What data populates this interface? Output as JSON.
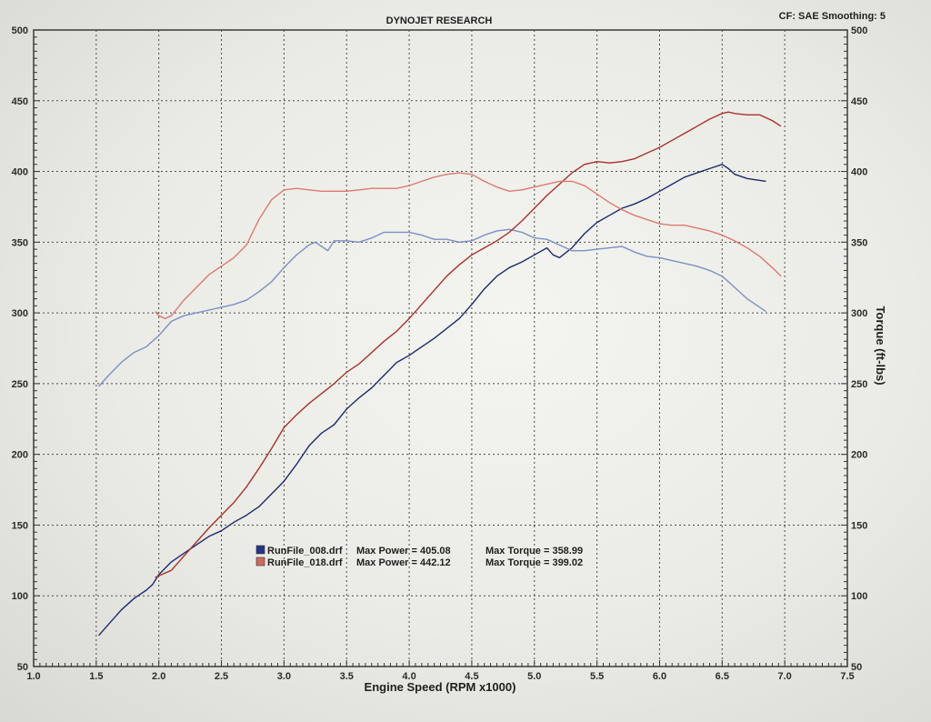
{
  "chart_data": {
    "type": "line",
    "title": "DYNOJET RESEARCH",
    "corner_note": "CF: SAE  Smoothing: 5",
    "xlabel": "Engine Speed (RPM x1000)",
    "ylabel_left": "",
    "ylabel_right": "Torque (ft-lbs)",
    "xlim": [
      1.0,
      7.5
    ],
    "ylim": [
      50,
      500
    ],
    "x_ticks": [
      "1.0",
      "1.5",
      "2.0",
      "2.5",
      "3.0",
      "3.5",
      "4.0",
      "4.5",
      "5.0",
      "5.5",
      "6.0",
      "6.5",
      "7.0",
      "7.5"
    ],
    "y_ticks": [
      "50",
      "100",
      "150",
      "200",
      "250",
      "300",
      "350",
      "400",
      "450",
      "500"
    ],
    "grid": true,
    "colors": {
      "dark_blue": "#1c2a6e",
      "light_blue": "#7d8fc4",
      "dark_red": "#a8322a",
      "light_red": "#dc7a6f"
    },
    "legend": [
      {
        "file": "RunFile_008.drf",
        "power_label": "Max Power = 405.08",
        "torque_label": "Max Torque = 358.99",
        "color": "#26348a"
      },
      {
        "file": "RunFile_018.drf",
        "power_label": "Max Power = 442.12",
        "torque_label": "Max Torque = 399.02",
        "color": "#d06a60"
      }
    ],
    "series": [
      {
        "name": "RunFile_008.drf",
        "measure": "power",
        "color": "#1c2a6e",
        "points": [
          [
            1.52,
            72
          ],
          [
            1.6,
            80
          ],
          [
            1.7,
            90
          ],
          [
            1.8,
            98
          ],
          [
            1.9,
            104
          ],
          [
            1.95,
            108
          ],
          [
            2.0,
            115
          ],
          [
            2.1,
            124
          ],
          [
            2.2,
            130
          ],
          [
            2.3,
            136
          ],
          [
            2.4,
            142
          ],
          [
            2.5,
            146
          ],
          [
            2.6,
            152
          ],
          [
            2.7,
            157
          ],
          [
            2.8,
            163
          ],
          [
            2.9,
            172
          ],
          [
            3.0,
            181
          ],
          [
            3.1,
            193
          ],
          [
            3.2,
            206
          ],
          [
            3.3,
            215
          ],
          [
            3.35,
            218
          ],
          [
            3.4,
            221
          ],
          [
            3.5,
            232
          ],
          [
            3.6,
            240
          ],
          [
            3.7,
            247
          ],
          [
            3.8,
            256
          ],
          [
            3.9,
            265
          ],
          [
            4.0,
            270
          ],
          [
            4.1,
            276
          ],
          [
            4.2,
            282
          ],
          [
            4.3,
            289
          ],
          [
            4.4,
            296
          ],
          [
            4.5,
            306
          ],
          [
            4.6,
            317
          ],
          [
            4.7,
            326
          ],
          [
            4.8,
            332
          ],
          [
            4.9,
            336
          ],
          [
            5.0,
            341
          ],
          [
            5.1,
            346
          ],
          [
            5.15,
            341
          ],
          [
            5.2,
            339
          ],
          [
            5.3,
            346
          ],
          [
            5.4,
            356
          ],
          [
            5.5,
            364
          ],
          [
            5.6,
            369
          ],
          [
            5.7,
            374
          ],
          [
            5.8,
            377
          ],
          [
            5.9,
            381
          ],
          [
            6.0,
            386
          ],
          [
            6.1,
            391
          ],
          [
            6.2,
            396
          ],
          [
            6.3,
            399
          ],
          [
            6.4,
            402
          ],
          [
            6.5,
            405
          ],
          [
            6.55,
            402
          ],
          [
            6.6,
            398
          ],
          [
            6.7,
            395
          ],
          [
            6.85,
            393
          ]
        ]
      },
      {
        "name": "RunFile_008.drf",
        "measure": "torque",
        "color": "#7d8fc4",
        "points": [
          [
            1.52,
            248
          ],
          [
            1.6,
            256
          ],
          [
            1.7,
            265
          ],
          [
            1.8,
            272
          ],
          [
            1.9,
            276
          ],
          [
            2.0,
            284
          ],
          [
            2.1,
            294
          ],
          [
            2.2,
            298
          ],
          [
            2.3,
            300
          ],
          [
            2.4,
            302
          ],
          [
            2.5,
            304
          ],
          [
            2.6,
            306
          ],
          [
            2.7,
            309
          ],
          [
            2.8,
            315
          ],
          [
            2.9,
            322
          ],
          [
            3.0,
            332
          ],
          [
            3.1,
            341
          ],
          [
            3.2,
            348
          ],
          [
            3.25,
            350
          ],
          [
            3.3,
            347
          ],
          [
            3.35,
            344
          ],
          [
            3.4,
            351
          ],
          [
            3.5,
            351
          ],
          [
            3.6,
            350
          ],
          [
            3.7,
            353
          ],
          [
            3.8,
            357
          ],
          [
            3.9,
            357
          ],
          [
            4.0,
            357
          ],
          [
            4.1,
            355
          ],
          [
            4.2,
            352
          ],
          [
            4.3,
            352
          ],
          [
            4.4,
            350
          ],
          [
            4.5,
            351
          ],
          [
            4.6,
            355
          ],
          [
            4.7,
            358
          ],
          [
            4.8,
            359
          ],
          [
            4.9,
            357
          ],
          [
            5.0,
            353
          ],
          [
            5.1,
            352
          ],
          [
            5.2,
            348
          ],
          [
            5.3,
            344
          ],
          [
            5.4,
            344
          ],
          [
            5.5,
            345
          ],
          [
            5.6,
            346
          ],
          [
            5.7,
            347
          ],
          [
            5.8,
            343
          ],
          [
            5.9,
            340
          ],
          [
            6.0,
            339
          ],
          [
            6.1,
            337
          ],
          [
            6.2,
            335
          ],
          [
            6.3,
            333
          ],
          [
            6.4,
            330
          ],
          [
            6.5,
            326
          ],
          [
            6.6,
            318
          ],
          [
            6.7,
            310
          ],
          [
            6.85,
            301
          ]
        ]
      },
      {
        "name": "RunFile_018.drf",
        "measure": "power",
        "color": "#a8322a",
        "points": [
          [
            1.97,
            113
          ],
          [
            2.1,
            118
          ],
          [
            2.2,
            128
          ],
          [
            2.3,
            138
          ],
          [
            2.4,
            148
          ],
          [
            2.5,
            157
          ],
          [
            2.6,
            166
          ],
          [
            2.7,
            177
          ],
          [
            2.8,
            190
          ],
          [
            2.9,
            204
          ],
          [
            3.0,
            219
          ],
          [
            3.1,
            228
          ],
          [
            3.2,
            236
          ],
          [
            3.3,
            243
          ],
          [
            3.4,
            250
          ],
          [
            3.5,
            258
          ],
          [
            3.6,
            264
          ],
          [
            3.7,
            272
          ],
          [
            3.8,
            280
          ],
          [
            3.9,
            287
          ],
          [
            4.0,
            296
          ],
          [
            4.1,
            306
          ],
          [
            4.2,
            316
          ],
          [
            4.3,
            326
          ],
          [
            4.4,
            334
          ],
          [
            4.5,
            341
          ],
          [
            4.6,
            346
          ],
          [
            4.7,
            351
          ],
          [
            4.8,
            357
          ],
          [
            4.9,
            365
          ],
          [
            5.0,
            374
          ],
          [
            5.1,
            383
          ],
          [
            5.2,
            391
          ],
          [
            5.3,
            399
          ],
          [
            5.4,
            405
          ],
          [
            5.5,
            407
          ],
          [
            5.6,
            406
          ],
          [
            5.7,
            407
          ],
          [
            5.8,
            409
          ],
          [
            5.9,
            413
          ],
          [
            6.0,
            417
          ],
          [
            6.1,
            422
          ],
          [
            6.2,
            427
          ],
          [
            6.3,
            432
          ],
          [
            6.4,
            437
          ],
          [
            6.5,
            441
          ],
          [
            6.55,
            442
          ],
          [
            6.6,
            441
          ],
          [
            6.7,
            440
          ],
          [
            6.8,
            440
          ],
          [
            6.9,
            436
          ],
          [
            6.97,
            432
          ]
        ]
      },
      {
        "name": "RunFile_018.drf",
        "measure": "torque",
        "color": "#dc7a6f",
        "points": [
          [
            1.97,
            301
          ],
          [
            2.0,
            298
          ],
          [
            2.05,
            296
          ],
          [
            2.1,
            298
          ],
          [
            2.2,
            309
          ],
          [
            2.3,
            318
          ],
          [
            2.4,
            327
          ],
          [
            2.5,
            333
          ],
          [
            2.6,
            339
          ],
          [
            2.7,
            348
          ],
          [
            2.8,
            366
          ],
          [
            2.9,
            380
          ],
          [
            3.0,
            387
          ],
          [
            3.1,
            388
          ],
          [
            3.2,
            387
          ],
          [
            3.3,
            386
          ],
          [
            3.4,
            386
          ],
          [
            3.5,
            386
          ],
          [
            3.6,
            387
          ],
          [
            3.7,
            388
          ],
          [
            3.8,
            388
          ],
          [
            3.9,
            388
          ],
          [
            4.0,
            390
          ],
          [
            4.1,
            393
          ],
          [
            4.2,
            396
          ],
          [
            4.3,
            398
          ],
          [
            4.4,
            399
          ],
          [
            4.5,
            398
          ],
          [
            4.6,
            393
          ],
          [
            4.7,
            389
          ],
          [
            4.8,
            386
          ],
          [
            4.9,
            387
          ],
          [
            5.0,
            389
          ],
          [
            5.1,
            391
          ],
          [
            5.2,
            393
          ],
          [
            5.3,
            393
          ],
          [
            5.4,
            390
          ],
          [
            5.5,
            384
          ],
          [
            5.6,
            378
          ],
          [
            5.7,
            373
          ],
          [
            5.8,
            369
          ],
          [
            5.9,
            366
          ],
          [
            6.0,
            363
          ],
          [
            6.1,
            362
          ],
          [
            6.2,
            362
          ],
          [
            6.3,
            360
          ],
          [
            6.4,
            358
          ],
          [
            6.5,
            355
          ],
          [
            6.6,
            351
          ],
          [
            6.7,
            346
          ],
          [
            6.8,
            340
          ],
          [
            6.9,
            332
          ],
          [
            6.97,
            326
          ]
        ]
      }
    ]
  }
}
